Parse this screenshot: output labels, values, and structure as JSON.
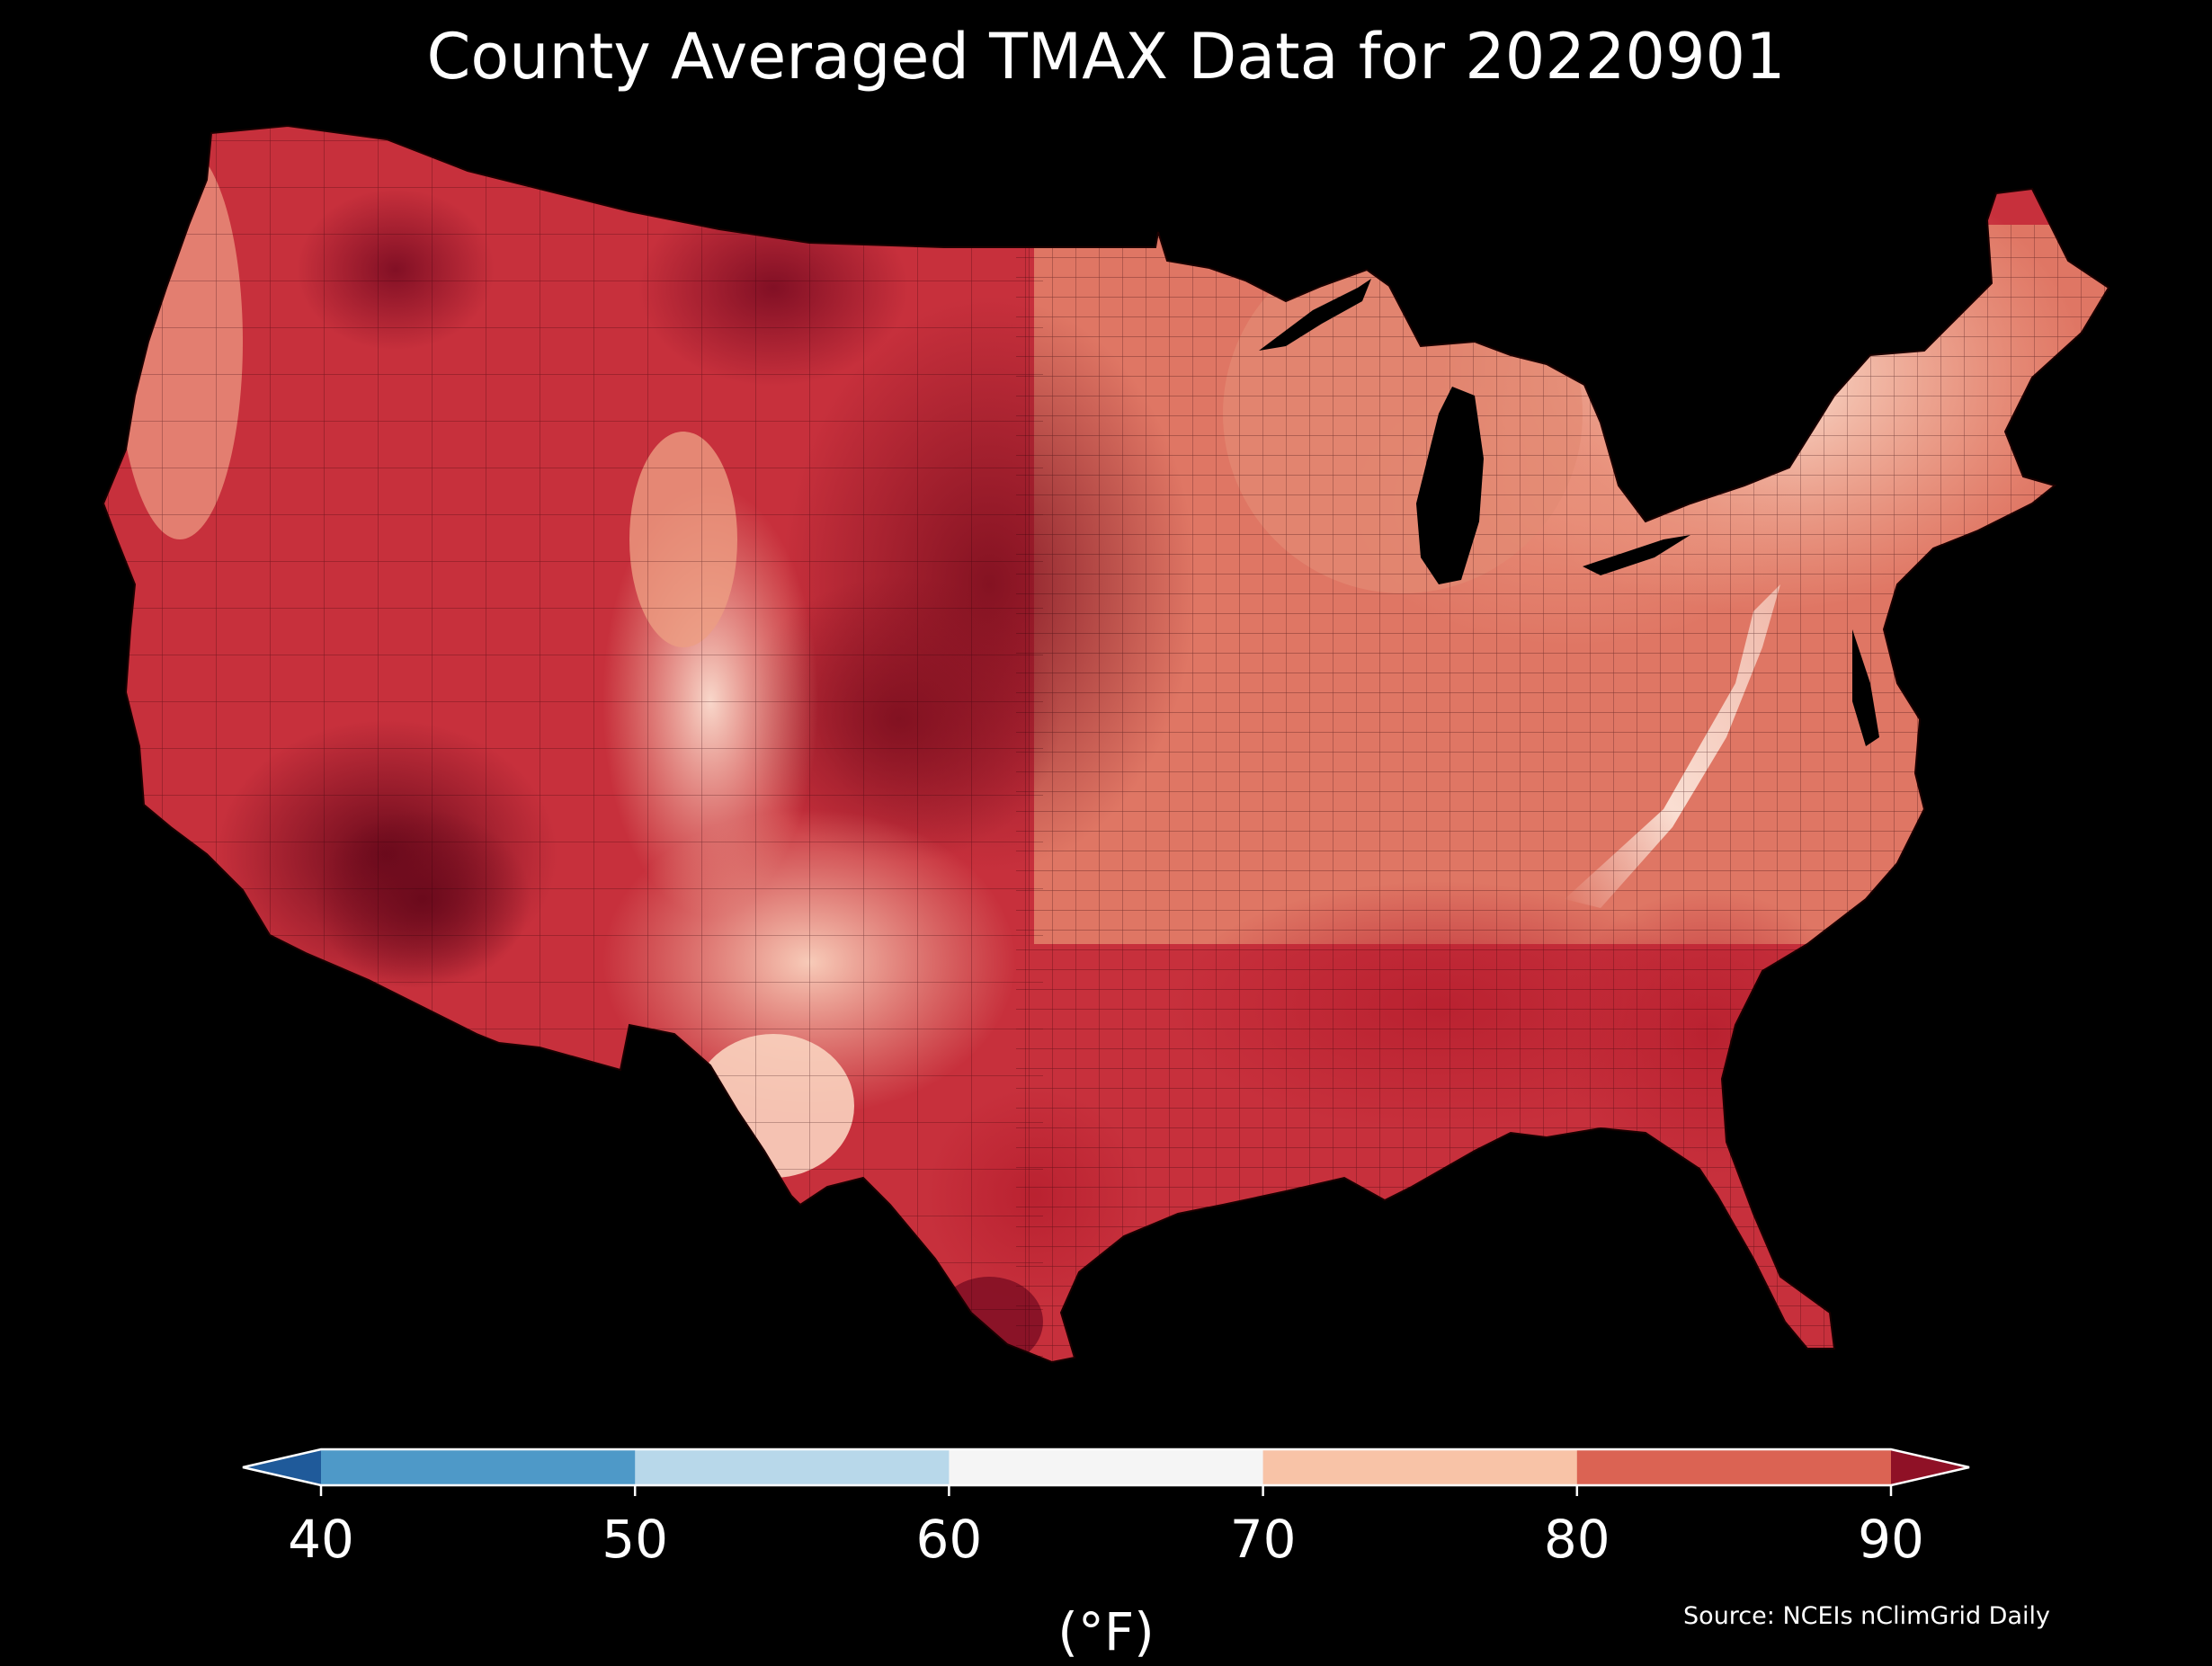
{
  "title": "County Averaged TMAX Data for 20220901",
  "colorbar": {
    "unit": "(°F)",
    "ticks": [
      "40",
      "50",
      "60",
      "70",
      "80",
      "90"
    ],
    "bins": [
      {
        "min": null,
        "max": 40,
        "color": "#1f5a9a"
      },
      {
        "min": 40,
        "max": 50,
        "color": "#4e99c8"
      },
      {
        "min": 50,
        "max": 60,
        "color": "#b8d8ea"
      },
      {
        "min": 60,
        "max": 70,
        "color": "#f5f5f5"
      },
      {
        "min": 70,
        "max": 80,
        "color": "#f8c3a7"
      },
      {
        "min": 80,
        "max": 90,
        "color": "#db6353"
      },
      {
        "min": 90,
        "max": null,
        "color": "#8f1126"
      }
    ],
    "extend": "both"
  },
  "source": "Source: NCEIs nClimGrid Daily",
  "colors": {
    "background": "#000000",
    "lakes": "#000000",
    "county_border": "#1a0000"
  }
}
